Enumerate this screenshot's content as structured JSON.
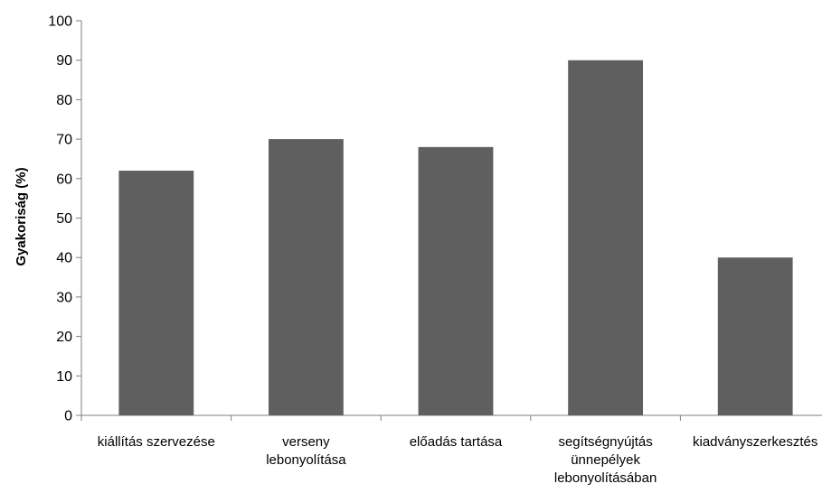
{
  "chart_data": {
    "type": "bar",
    "categories": [
      [
        "kiállítás szervezése"
      ],
      [
        "verseny",
        "lebonyolítása"
      ],
      [
        "előadás tartása"
      ],
      [
        "segítségnyújtás",
        "ünnepélyek",
        "lebonyolításában"
      ],
      [
        "kiadványszerkesztés"
      ]
    ],
    "values": [
      62,
      70,
      68,
      90,
      40
    ],
    "ylabel": "Gyakoriság  (%)",
    "xlabel": "",
    "ylim": [
      0,
      100
    ],
    "ytick_step": 10,
    "grid": false,
    "legend": "none",
    "bar_color": "#5f5f5f"
  }
}
